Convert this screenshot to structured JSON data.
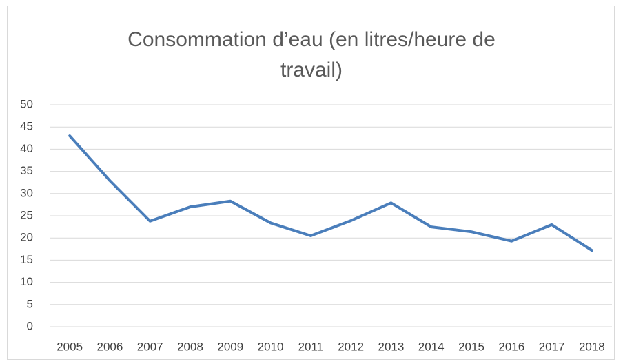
{
  "chart_data": {
    "type": "line",
    "title": "Consommation d’eau (en litres/heure de travail)",
    "categories": [
      "2005",
      "2006",
      "2007",
      "2008",
      "2009",
      "2010",
      "2011",
      "2012",
      "2013",
      "2014",
      "2015",
      "2016",
      "2017",
      "2018"
    ],
    "series": [
      {
        "name": "Consommation",
        "color": "#4a7ebb",
        "values": [
          43.0,
          32.9,
          23.8,
          27.0,
          28.3,
          23.4,
          20.5,
          23.9,
          27.9,
          22.5,
          21.4,
          19.3,
          23.0,
          17.2
        ]
      }
    ],
    "ylim": [
      0,
      50
    ],
    "yticks": [
      0,
      5,
      10,
      15,
      20,
      25,
      30,
      35,
      40,
      45,
      50
    ],
    "grid": true,
    "legend": false
  }
}
